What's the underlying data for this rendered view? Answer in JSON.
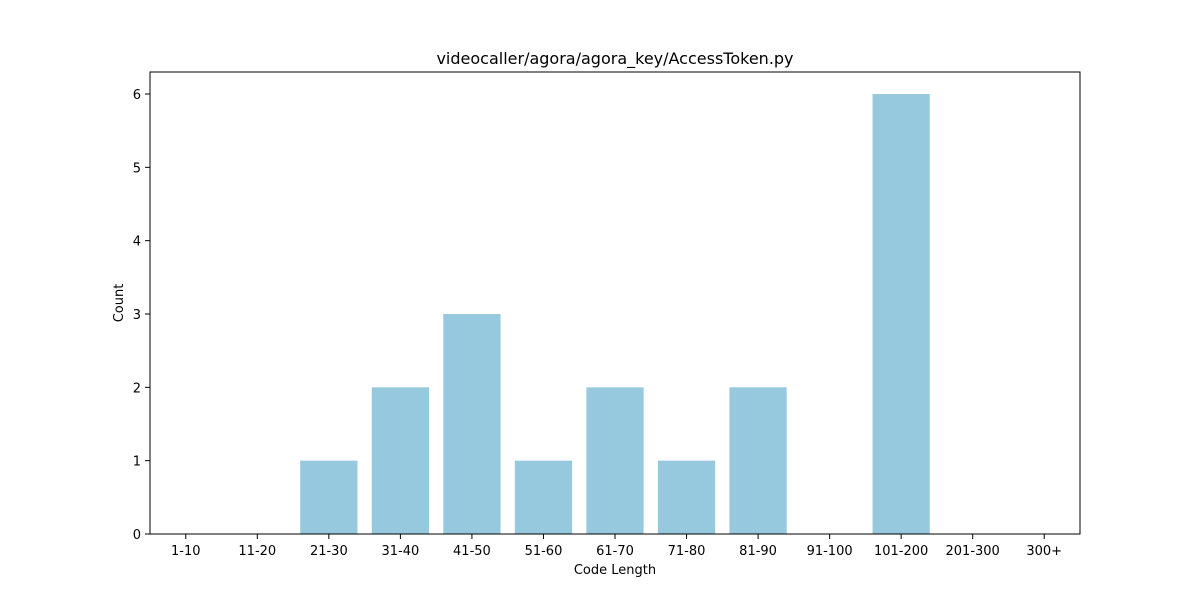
{
  "chart_data": {
    "type": "bar",
    "title": "videocaller/agora/agora_key/AccessToken.py",
    "xlabel": "Code Length",
    "ylabel": "Count",
    "categories": [
      "1-10",
      "11-20",
      "21-30",
      "31-40",
      "41-50",
      "51-60",
      "61-70",
      "71-80",
      "81-90",
      "91-100",
      "101-200",
      "201-300",
      "300+"
    ],
    "values": [
      0,
      0,
      1,
      2,
      3,
      1,
      2,
      1,
      2,
      0,
      6,
      0,
      0
    ],
    "yticks": [
      0,
      1,
      2,
      3,
      4,
      5,
      6
    ],
    "ylim": [
      0,
      6.3
    ],
    "grid": false,
    "bar_color": "#96c9dd"
  }
}
